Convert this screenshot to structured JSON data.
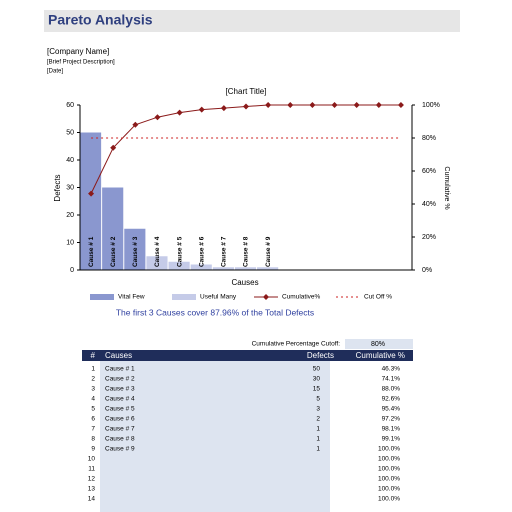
{
  "header": {
    "title": "Pareto Analysis",
    "company": "[Company Name]",
    "description": "[Brief Project Description]",
    "date": "[Date]"
  },
  "chart_data": {
    "type": "pareto",
    "title": "[Chart Title]",
    "x_label": "Causes",
    "y_label": "Defects",
    "y2_label": "Cumulative %",
    "categories": [
      "Cause # 1",
      "Cause # 2",
      "Cause # 3",
      "Cause # 4",
      "Cause # 5",
      "Cause # 6",
      "Cause # 7",
      "Cause # 8",
      "Cause # 9",
      null,
      null,
      null,
      null,
      null,
      null
    ],
    "series": [
      {
        "name": "Vital Few",
        "kind": "bar",
        "color": "#8a97cf",
        "values": [
          50,
          30,
          15,
          null,
          null,
          null,
          null,
          null,
          null,
          null,
          null,
          null,
          null,
          null,
          null
        ]
      },
      {
        "name": "Useful Many",
        "kind": "bar",
        "color": "#c5cbe8",
        "values": [
          null,
          null,
          null,
          5,
          3,
          2,
          1,
          1,
          1,
          null,
          null,
          null,
          null,
          null,
          null
        ]
      },
      {
        "name": "Cumulative%",
        "kind": "line",
        "axis": "y2",
        "color": "#8b1a1a",
        "values": [
          46.3,
          74.1,
          88.0,
          92.6,
          95.4,
          97.2,
          98.1,
          99.1,
          100,
          100,
          100,
          100,
          100,
          100,
          100
        ]
      },
      {
        "name": "Cut Off %",
        "kind": "cutoff",
        "axis": "y2",
        "color": "#cc2222",
        "value": 80
      }
    ],
    "ylim": [
      0,
      60
    ],
    "yticks": [
      0,
      10,
      20,
      30,
      40,
      50,
      60
    ],
    "y2lim": [
      0,
      100
    ],
    "y2ticks": [
      {
        "value": 0,
        "label": "0%"
      },
      {
        "value": 20,
        "label": "20%"
      },
      {
        "value": 40,
        "label": "40%"
      },
      {
        "value": 60,
        "label": "60%"
      },
      {
        "value": 80,
        "label": "80%"
      },
      {
        "value": 100,
        "label": "100%"
      }
    ],
    "legend": "bottom"
  },
  "summary": "The first 3 Causes cover 87.96% of the Total Defects",
  "cutoff": {
    "label": "Cumulative Percentage Cutoff:",
    "value": "80%"
  },
  "table": {
    "columns": [
      "#",
      "Causes",
      "Defects",
      "Cumulative %"
    ],
    "rows": [
      {
        "n": "1",
        "cause": "Cause # 1",
        "defects": "50",
        "cum": "46.3%"
      },
      {
        "n": "2",
        "cause": "Cause # 2",
        "defects": "30",
        "cum": "74.1%"
      },
      {
        "n": "3",
        "cause": "Cause # 3",
        "defects": "15",
        "cum": "88.0%"
      },
      {
        "n": "4",
        "cause": "Cause # 4",
        "defects": "5",
        "cum": "92.6%"
      },
      {
        "n": "5",
        "cause": "Cause # 5",
        "defects": "3",
        "cum": "95.4%"
      },
      {
        "n": "6",
        "cause": "Cause # 6",
        "defects": "2",
        "cum": "97.2%"
      },
      {
        "n": "7",
        "cause": "Cause # 7",
        "defects": "1",
        "cum": "98.1%"
      },
      {
        "n": "8",
        "cause": "Cause # 8",
        "defects": "1",
        "cum": "99.1%"
      },
      {
        "n": "9",
        "cause": "Cause # 9",
        "defects": "1",
        "cum": "100.0%"
      },
      {
        "n": "10",
        "cum": "100.0%"
      },
      {
        "n": "11",
        "cum": "100.0%"
      },
      {
        "n": "12",
        "cum": "100.0%"
      },
      {
        "n": "13",
        "cum": "100.0%"
      },
      {
        "n": "14",
        "cum": "100.0%"
      }
    ]
  }
}
